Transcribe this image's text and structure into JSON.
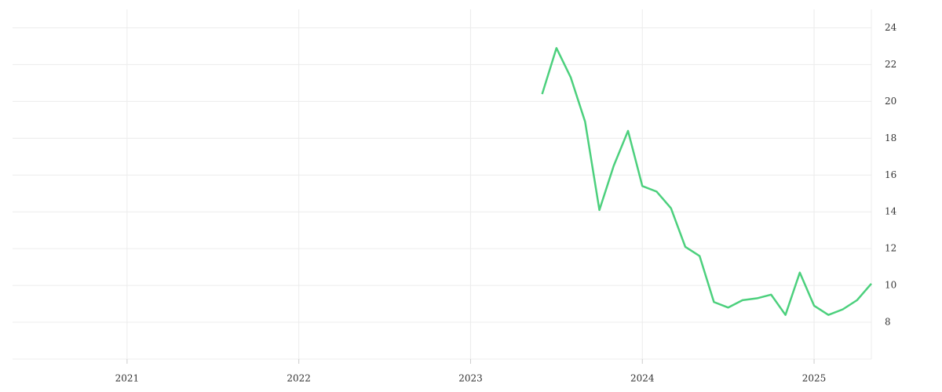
{
  "chart_data": {
    "type": "line",
    "x": [
      "2023-06",
      "2023-07",
      "2023-08",
      "2023-09",
      "2023-10",
      "2023-11",
      "2023-12",
      "2024-01",
      "2024-02",
      "2024-03",
      "2024-04",
      "2024-05",
      "2024-06",
      "2024-07",
      "2024-08",
      "2024-09",
      "2024-10",
      "2024-11",
      "2024-12",
      "2025-01",
      "2025-02",
      "2025-03",
      "2025-04",
      "2025-05"
    ],
    "series": [
      {
        "color": "#4cd07d",
        "values": [
          20.4,
          22.9,
          21.3,
          18.9,
          14.1,
          16.5,
          18.4,
          15.4,
          15.1,
          14.2,
          12.1,
          11.6,
          9.1,
          8.8,
          9.2,
          9.3,
          9.5,
          8.4,
          10.7,
          8.9,
          8.4,
          8.7,
          9.2,
          10.1
        ]
      }
    ],
    "xlim": [
      "2020-05",
      "2025-05"
    ],
    "xticks": [
      "2021",
      "2022",
      "2023",
      "2024",
      "2025"
    ],
    "ylim": [
      6,
      25
    ],
    "yticks": [
      8,
      10,
      12,
      14,
      16,
      18,
      20,
      22,
      24
    ],
    "grid": true
  }
}
